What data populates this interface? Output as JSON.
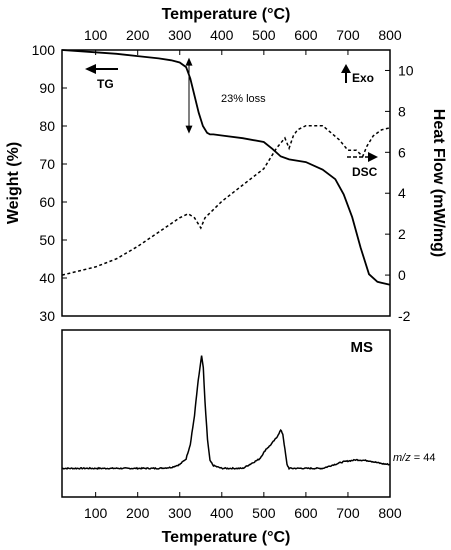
{
  "chart_data": [
    {
      "type": "line",
      "title": "",
      "x_axis": {
        "label": "Temperature (°C)",
        "range": [
          20,
          800
        ],
        "ticks": [
          100,
          200,
          300,
          400,
          500,
          600,
          700,
          800
        ],
        "position": "top"
      },
      "y_left": {
        "label": "Weight (%)",
        "range": [
          30,
          100
        ],
        "ticks": [
          30,
          40,
          50,
          60,
          70,
          80,
          90,
          100
        ]
      },
      "y_right": {
        "label": "Heat Flow (mW/mg)",
        "range": [
          -2,
          11
        ],
        "ticks": [
          -2,
          0,
          2,
          4,
          6,
          8,
          10
        ]
      },
      "grid": false,
      "series": [
        {
          "name": "TG",
          "axis": "left",
          "style": "solid",
          "x": [
            20,
            100,
            150,
            200,
            250,
            280,
            300,
            315,
            325,
            335,
            345,
            355,
            365,
            372,
            380,
            400,
            450,
            500,
            520,
            540,
            560,
            600,
            640,
            670,
            690,
            710,
            730,
            750,
            770,
            800
          ],
          "y": [
            100,
            99.4,
            99.0,
            98.4,
            97.8,
            97.3,
            96.7,
            95.5,
            92.5,
            88.0,
            83.5,
            80.0,
            78.2,
            77.8,
            77.8,
            77.5,
            76.8,
            75.8,
            74.0,
            72.0,
            71.2,
            70.5,
            68.5,
            66.0,
            62.0,
            56.0,
            48.0,
            41.0,
            39.0,
            38.2
          ]
        },
        {
          "name": "DSC",
          "axis": "right",
          "style": "dashed",
          "x": [
            20,
            60,
            100,
            150,
            200,
            250,
            300,
            320,
            335,
            350,
            360,
            370,
            400,
            450,
            500,
            530,
            550,
            560,
            570,
            580,
            600,
            640,
            680,
            700,
            720,
            735,
            745,
            760,
            780,
            800
          ],
          "y": [
            0.0,
            0.2,
            0.4,
            0.8,
            1.4,
            2.1,
            2.8,
            3.0,
            2.8,
            2.3,
            2.8,
            3.0,
            3.6,
            4.4,
            5.2,
            6.2,
            6.7,
            6.2,
            6.8,
            7.1,
            7.3,
            7.3,
            6.6,
            6.1,
            6.1,
            5.8,
            6.3,
            6.8,
            7.1,
            7.2
          ]
        }
      ],
      "annotations": [
        {
          "text": "TG",
          "arrow": "left"
        },
        {
          "text": "23% loss",
          "arrow": "vertical-double",
          "x": 322,
          "from": 98,
          "to": 78
        },
        {
          "text": "Exo",
          "arrow": "up"
        },
        {
          "text": "DSC",
          "arrow": "right"
        }
      ]
    },
    {
      "type": "line",
      "title": "MS",
      "x_axis": {
        "label": "Temperature (°C)",
        "range": [
          20,
          800
        ],
        "ticks": [
          100,
          200,
          300,
          400,
          500,
          600,
          700,
          800
        ],
        "position": "bottom"
      },
      "y_axis": {
        "label": "",
        "range": [
          -0.3,
          1.45
        ],
        "ticks": []
      },
      "grid": false,
      "series": [
        {
          "name": "m/z = 44",
          "style": "solid",
          "x": [
            20,
            100,
            200,
            250,
            280,
            300,
            315,
            325,
            335,
            342,
            348,
            352,
            356,
            360,
            366,
            372,
            380,
            400,
            450,
            490,
            505,
            515,
            530,
            540,
            545,
            550,
            555,
            560,
            580,
            640,
            660,
            690,
            720,
            750,
            780,
            800
          ],
          "y": [
            0.0,
            0.0,
            0.0,
            0.0,
            0.01,
            0.04,
            0.1,
            0.25,
            0.55,
            0.85,
            1.05,
            1.18,
            1.05,
            0.7,
            0.3,
            0.08,
            0.03,
            0.0,
            0.0,
            0.1,
            0.2,
            0.24,
            0.32,
            0.4,
            0.36,
            0.2,
            0.04,
            0.0,
            0.0,
            0.0,
            0.03,
            0.07,
            0.09,
            0.08,
            0.05,
            0.04
          ]
        }
      ]
    }
  ]
}
